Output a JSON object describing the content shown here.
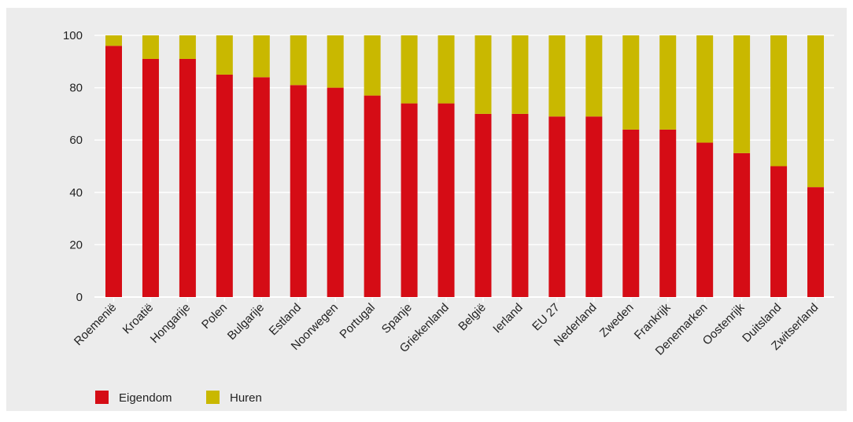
{
  "chart_data": {
    "type": "bar",
    "stacked": true,
    "categories": [
      "Roemenië",
      "Kroatië",
      "Hongarije",
      "Polen",
      "Bulgarije",
      "Estland",
      "Noorwegen",
      "Portugal",
      "Spanje",
      "Griekenland",
      "België",
      "Ierland",
      "EU 27",
      "Nederland",
      "Zweden",
      "Frankrijk",
      "Denemarken",
      "Oostenrijk",
      "Duitsland",
      "Zwitserland"
    ],
    "series": [
      {
        "name": "Eigendom",
        "color": "#d50c15",
        "values": [
          96,
          91,
          91,
          85,
          84,
          81,
          80,
          77,
          74,
          74,
          70,
          70,
          69,
          69,
          64,
          64,
          59,
          55,
          50,
          42
        ]
      },
      {
        "name": "Huren",
        "color": "#c9b800",
        "values": [
          4,
          9,
          9,
          15,
          16,
          19,
          20,
          23,
          26,
          26,
          30,
          30,
          31,
          31,
          36,
          36,
          41,
          45,
          50,
          58
        ]
      }
    ],
    "ylim": [
      0,
      100
    ],
    "yticks": [
      0,
      20,
      40,
      60,
      80,
      100
    ],
    "grid": true,
    "legend": "bottom-left"
  }
}
